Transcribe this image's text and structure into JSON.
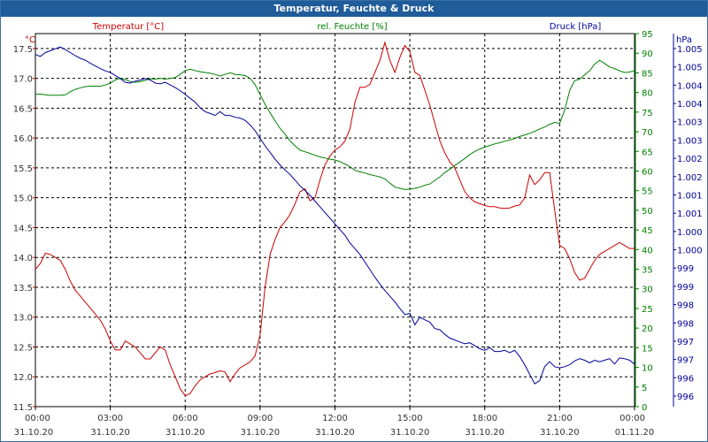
{
  "chart_data": {
    "type": "line",
    "title": "Temperatur, Feuchte & Druck",
    "x_ticks": [
      {
        "time": "00:00",
        "date": "31.10.20"
      },
      {
        "time": "03:00",
        "date": "31.10.20"
      },
      {
        "time": "06:00",
        "date": "31.10.20"
      },
      {
        "time": "09:00",
        "date": "31.10.20"
      },
      {
        "time": "12:00",
        "date": "31.10.20"
      },
      {
        "time": "15:00",
        "date": "31.10.20"
      },
      {
        "time": "18:00",
        "date": "31.10.20"
      },
      {
        "time": "21:00",
        "date": "31.10.20"
      },
      {
        "time": "00:00",
        "date": "01.11.20"
      }
    ],
    "x_range_hours": [
      0,
      24
    ],
    "axes": {
      "temperature": {
        "label": "Temperatur [°C]",
        "unit_label": "°C",
        "color": "#cc0000",
        "range": [
          11.5,
          17.75
        ],
        "ticks": [
          "17.5",
          "17.0",
          "16.5",
          "16.0",
          "15.5",
          "15.0",
          "14.5",
          "14.0",
          "13.5",
          "13.0",
          "12.5",
          "12.0",
          "11.5"
        ]
      },
      "humidity": {
        "label": "rel. Feuchte [%]",
        "unit_label": "%",
        "color": "#008000",
        "range": [
          0,
          95
        ],
        "ticks": [
          "95",
          "90",
          "85",
          "80",
          "75",
          "70",
          "65",
          "60",
          "55",
          "50",
          "45",
          "40",
          "35",
          "30",
          "25",
          "20",
          "15",
          "10",
          "5",
          "0"
        ]
      },
      "pressure": {
        "label": "Druck [hPa]",
        "unit_label": "hPa",
        "color": "#000099",
        "range": [
          995.5,
          1005.3
        ],
        "ticks": [
          "1.005",
          "1.005",
          "1.004",
          "1.004",
          "1.003",
          "1.003",
          "1.002",
          "1.002",
          "1.001",
          "1.001",
          "1.000",
          "1.000",
          "999",
          "999",
          "998",
          "998",
          "997",
          "997",
          "996",
          "996"
        ]
      }
    },
    "series": [
      {
        "name": "Temperatur",
        "axis": "temperature",
        "color": "#cc0000",
        "x": [
          0,
          0.2,
          0.4,
          0.6,
          0.8,
          1.0,
          1.2,
          1.4,
          1.6,
          1.8,
          2.0,
          2.2,
          2.4,
          2.6,
          2.8,
          3.0,
          3.2,
          3.4,
          3.6,
          3.8,
          4.0,
          4.2,
          4.4,
          4.6,
          4.8,
          5.0,
          5.2,
          5.4,
          5.6,
          5.8,
          6.0,
          6.2,
          6.4,
          6.6,
          6.8,
          7.0,
          7.2,
          7.4,
          7.6,
          7.8,
          8.0,
          8.2,
          8.4,
          8.6,
          8.8,
          9.0,
          9.2,
          9.4,
          9.6,
          9.8,
          10.0,
          10.2,
          10.4,
          10.6,
          10.8,
          11.0,
          11.2,
          11.4,
          11.6,
          11.8,
          12.0,
          12.2,
          12.4,
          12.6,
          12.8,
          13.0,
          13.2,
          13.4,
          13.6,
          13.8,
          14.0,
          14.2,
          14.4,
          14.6,
          14.8,
          15.0,
          15.2,
          15.4,
          15.6,
          15.8,
          16.0,
          16.2,
          16.4,
          16.6,
          16.8,
          17.0,
          17.2,
          17.4,
          17.6,
          17.8,
          18.0,
          18.2,
          18.4,
          18.6,
          18.8,
          19.0,
          19.2,
          19.4,
          19.6,
          19.8,
          20.0,
          20.2,
          20.4,
          20.6,
          20.8,
          21.0,
          21.2,
          21.4,
          21.6,
          21.8,
          22.0,
          22.2,
          22.4,
          22.6,
          22.8,
          23.0,
          23.2,
          23.4,
          23.6,
          23.8,
          24.0
        ],
        "values": [
          13.8,
          13.9,
          14.07,
          14.05,
          14.0,
          13.95,
          13.8,
          13.6,
          13.45,
          13.35,
          13.25,
          13.15,
          13.05,
          12.95,
          12.8,
          12.6,
          12.45,
          12.45,
          12.6,
          12.55,
          12.5,
          12.4,
          12.3,
          12.3,
          12.4,
          12.5,
          12.45,
          12.2,
          12.0,
          11.8,
          11.68,
          11.72,
          11.85,
          11.95,
          12.0,
          12.05,
          12.07,
          12.1,
          12.08,
          11.92,
          12.05,
          12.15,
          12.2,
          12.25,
          12.35,
          12.7,
          13.5,
          14.05,
          14.3,
          14.5,
          14.6,
          14.72,
          14.9,
          15.1,
          15.15,
          14.95,
          15.0,
          15.3,
          15.55,
          15.7,
          15.8,
          15.85,
          15.95,
          16.15,
          16.6,
          16.85,
          16.85,
          16.9,
          17.1,
          17.3,
          17.6,
          17.3,
          17.1,
          17.35,
          17.55,
          17.45,
          17.1,
          17.05,
          16.8,
          16.55,
          16.25,
          15.95,
          15.75,
          15.6,
          15.5,
          15.3,
          15.1,
          15.0,
          14.93,
          14.9,
          14.87,
          14.85,
          14.85,
          14.83,
          14.82,
          14.83,
          14.86,
          14.88,
          15.0,
          15.38,
          15.22,
          15.3,
          15.42,
          15.42,
          14.8,
          14.2,
          14.15,
          13.98,
          13.75,
          13.62,
          13.65,
          13.8,
          13.95,
          14.05,
          14.1,
          14.15,
          14.2,
          14.25,
          14.2,
          14.15,
          14.15
        ]
      },
      {
        "name": "rel. Feuchte",
        "axis": "humidity",
        "color": "#008000",
        "x": [
          0,
          0.2,
          0.4,
          0.6,
          0.8,
          1.0,
          1.2,
          1.4,
          1.6,
          1.8,
          2.0,
          2.2,
          2.4,
          2.6,
          2.8,
          3.0,
          3.2,
          3.4,
          3.6,
          3.8,
          4.0,
          4.2,
          4.4,
          4.6,
          4.8,
          5.0,
          5.2,
          5.4,
          5.6,
          5.8,
          6.0,
          6.2,
          6.4,
          6.6,
          6.8,
          7.0,
          7.2,
          7.4,
          7.6,
          7.8,
          8.0,
          8.2,
          8.4,
          8.6,
          8.8,
          9.0,
          9.2,
          9.4,
          9.6,
          9.8,
          10.0,
          10.2,
          10.4,
          10.6,
          10.8,
          11.0,
          11.2,
          11.4,
          11.6,
          11.8,
          12.0,
          12.2,
          12.4,
          12.6,
          12.8,
          13.0,
          13.2,
          13.4,
          13.6,
          13.8,
          14.0,
          14.2,
          14.4,
          14.6,
          14.8,
          15.0,
          15.2,
          15.4,
          15.6,
          15.8,
          16.0,
          16.2,
          16.4,
          16.6,
          16.8,
          17.0,
          17.2,
          17.4,
          17.6,
          17.8,
          18.0,
          18.2,
          18.4,
          18.6,
          18.8,
          19.0,
          19.2,
          19.4,
          19.6,
          19.8,
          20.0,
          20.2,
          20.4,
          20.6,
          20.8,
          21.0,
          21.2,
          21.4,
          21.6,
          21.8,
          22.0,
          22.2,
          22.4,
          22.6,
          22.8,
          23.0,
          23.2,
          23.4,
          23.6,
          23.8,
          24.0
        ],
        "values": [
          79.5,
          79.6,
          79.4,
          79.3,
          79.3,
          79.3,
          79.4,
          80.2,
          80.8,
          81.2,
          81.5,
          81.6,
          81.6,
          81.6,
          81.9,
          82.4,
          83.2,
          83.6,
          83.3,
          82.8,
          82.6,
          82.8,
          83.1,
          83.5,
          83.4,
          83.6,
          83.4,
          83.6,
          83.8,
          84.6,
          85.6,
          85.9,
          85.6,
          85.3,
          85.1,
          84.9,
          84.6,
          84.2,
          84.6,
          85.0,
          84.6,
          84.5,
          84.3,
          83.6,
          82.0,
          79.5,
          77.0,
          74.8,
          72.8,
          70.9,
          69.4,
          67.7,
          66.4,
          65.3,
          64.9,
          64.5,
          64.0,
          63.6,
          63.3,
          63.0,
          62.8,
          62.4,
          61.8,
          61.1,
          60.2,
          59.8,
          59.5,
          59.1,
          58.8,
          58.5,
          58.0,
          56.9,
          55.9,
          55.6,
          55.3,
          55.4,
          55.6,
          55.9,
          56.4,
          56.7,
          57.6,
          58.5,
          59.6,
          60.5,
          61.4,
          62.3,
          63.2,
          64.2,
          65.0,
          65.6,
          66.1,
          66.5,
          66.9,
          67.2,
          67.6,
          67.9,
          68.3,
          68.8,
          69.2,
          69.6,
          70.1,
          70.7,
          71.2,
          71.9,
          72.4,
          72.1,
          75.5,
          80.5,
          83.0,
          83.4,
          84.5,
          85.5,
          87.2,
          88.2,
          87.4,
          86.5,
          86.1,
          85.5,
          85.1,
          85.2,
          85.6
        ]
      },
      {
        "name": "Druck",
        "axis": "pressure",
        "color": "#000099",
        "x": [
          0,
          0.2,
          0.4,
          0.6,
          0.8,
          1.0,
          1.2,
          1.4,
          1.6,
          1.8,
          2.0,
          2.2,
          2.4,
          2.6,
          2.8,
          3.0,
          3.2,
          3.4,
          3.6,
          3.8,
          4.0,
          4.2,
          4.4,
          4.6,
          4.8,
          5.0,
          5.2,
          5.4,
          5.6,
          5.8,
          6.0,
          6.2,
          6.4,
          6.6,
          6.8,
          7.0,
          7.2,
          7.4,
          7.6,
          7.8,
          8.0,
          8.2,
          8.4,
          8.6,
          8.8,
          9.0,
          9.2,
          9.4,
          9.6,
          9.8,
          10.0,
          10.2,
          10.4,
          10.6,
          10.8,
          11.0,
          11.2,
          11.4,
          11.6,
          11.8,
          12.0,
          12.2,
          12.4,
          12.6,
          12.8,
          13.0,
          13.2,
          13.4,
          13.6,
          13.8,
          14.0,
          14.2,
          14.4,
          14.6,
          14.8,
          15.0,
          15.2,
          15.4,
          15.6,
          15.8,
          16.0,
          16.2,
          16.4,
          16.6,
          16.8,
          17.0,
          17.2,
          17.4,
          17.6,
          17.8,
          18.0,
          18.2,
          18.4,
          18.6,
          18.8,
          19.0,
          19.2,
          19.4,
          19.6,
          19.8,
          20.0,
          20.2,
          20.4,
          20.6,
          20.8,
          21.0,
          21.2,
          21.4,
          21.6,
          21.8,
          22.0,
          22.2,
          22.4,
          22.6,
          22.8,
          23.0,
          23.2,
          23.4,
          23.6,
          23.8,
          24.0
        ],
        "values": [
          1004.75,
          1004.7,
          1004.8,
          1004.85,
          1004.9,
          1004.95,
          1004.88,
          1004.8,
          1004.72,
          1004.65,
          1004.6,
          1004.52,
          1004.45,
          1004.38,
          1004.32,
          1004.28,
          1004.2,
          1004.12,
          1004.02,
          1004.0,
          1004.05,
          1004.08,
          1004.12,
          1004.08,
          1004.0,
          1003.98,
          1004.02,
          1003.95,
          1003.88,
          1003.8,
          1003.7,
          1003.6,
          1003.5,
          1003.35,
          1003.25,
          1003.2,
          1003.15,
          1003.25,
          1003.15,
          1003.15,
          1003.1,
          1003.08,
          1003.02,
          1002.9,
          1002.75,
          1002.55,
          1002.35,
          1002.18,
          1002.0,
          1001.85,
          1001.72,
          1001.6,
          1001.45,
          1001.3,
          1001.18,
          1001.05,
          1000.9,
          1000.75,
          1000.6,
          1000.45,
          1000.3,
          1000.15,
          1000.0,
          999.8,
          999.65,
          999.5,
          999.3,
          999.1,
          998.9,
          998.72,
          998.55,
          998.4,
          998.25,
          998.08,
          997.92,
          997.95,
          997.65,
          997.85,
          997.78,
          997.72,
          997.55,
          997.52,
          997.4,
          997.3,
          997.25,
          997.2,
          997.15,
          997.18,
          997.1,
          997.02,
          996.98,
          997.05,
          996.95,
          996.95,
          996.98,
          996.92,
          996.98,
          996.82,
          996.6,
          996.35,
          996.1,
          996.18,
          996.55,
          996.68,
          996.55,
          996.52,
          996.55,
          996.6,
          996.7,
          996.76,
          996.72,
          996.65,
          996.72,
          996.68,
          996.72,
          996.76,
          996.62,
          996.78,
          996.76,
          996.72,
          996.62
        ]
      }
    ]
  }
}
